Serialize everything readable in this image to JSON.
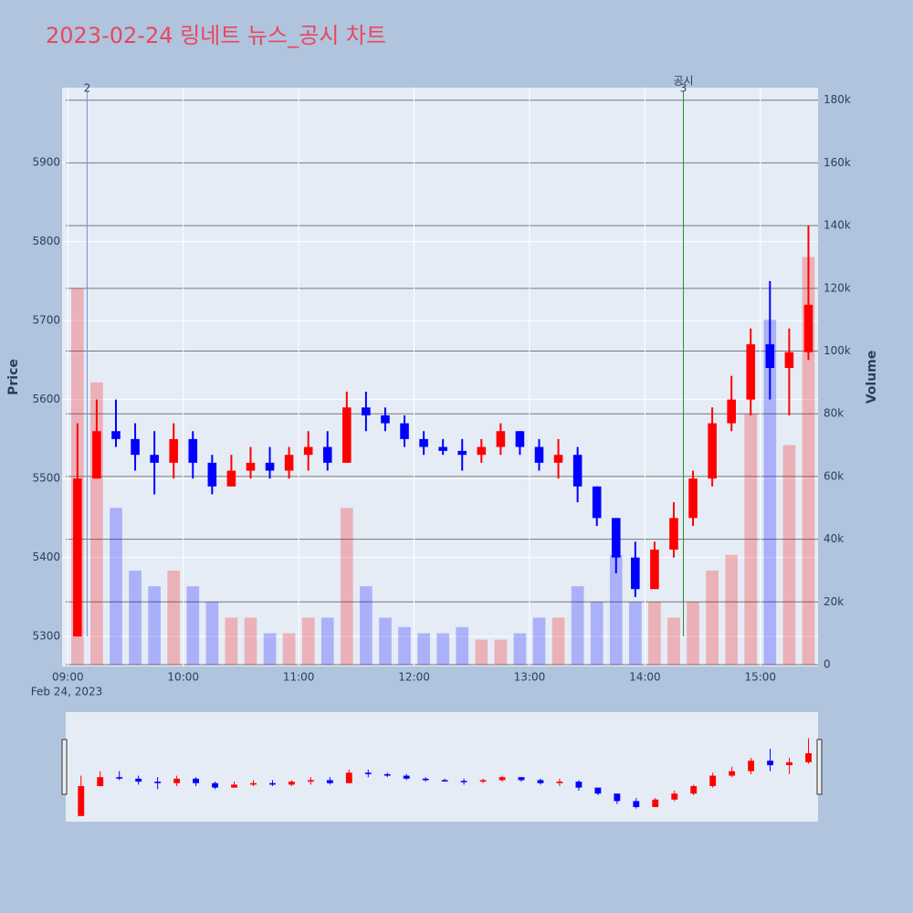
{
  "chart_data": {
    "type": "candlestick",
    "title": "2023-02-24 링네트 뉴스_공시 차트",
    "x": [
      "09:00",
      "09:10",
      "09:20",
      "09:30",
      "09:40",
      "09:50",
      "10:00",
      "10:10",
      "10:20",
      "10:30",
      "10:40",
      "10:50",
      "11:00",
      "11:10",
      "11:20",
      "11:30",
      "11:40",
      "11:50",
      "12:00",
      "12:10",
      "12:20",
      "12:30",
      "12:40",
      "12:50",
      "13:00",
      "13:10",
      "13:20",
      "13:30",
      "13:40",
      "13:50",
      "14:00",
      "14:10",
      "14:20",
      "14:30",
      "14:40",
      "14:50",
      "15:00",
      "15:10",
      "15:20"
    ],
    "open": [
      5300,
      5500,
      5560,
      5550,
      5530,
      5520,
      5550,
      5520,
      5490,
      5510,
      5520,
      5510,
      5530,
      5540,
      5520,
      5590,
      5580,
      5570,
      5550,
      5540,
      5535,
      5530,
      5540,
      5560,
      5540,
      5520,
      5530,
      5490,
      5450,
      5400,
      5360,
      5410,
      5450,
      5500,
      5570,
      5600,
      5670,
      5640,
      5660
    ],
    "high": [
      5570,
      5600,
      5600,
      5570,
      5560,
      5570,
      5560,
      5530,
      5530,
      5540,
      5540,
      5540,
      5560,
      5560,
      5610,
      5610,
      5590,
      5580,
      5560,
      5550,
      5550,
      5550,
      5570,
      5560,
      5550,
      5550,
      5540,
      5490,
      5450,
      5420,
      5420,
      5470,
      5510,
      5590,
      5630,
      5690,
      5750,
      5690,
      5820
    ],
    "low": [
      5300,
      5500,
      5540,
      5510,
      5480,
      5500,
      5500,
      5480,
      5490,
      5500,
      5500,
      5500,
      5510,
      5510,
      5520,
      5560,
      5560,
      5540,
      5530,
      5530,
      5510,
      5520,
      5530,
      5530,
      5510,
      5500,
      5470,
      5440,
      5380,
      5350,
      5360,
      5400,
      5440,
      5490,
      5560,
      5580,
      5600,
      5580,
      5650
    ],
    "close": [
      5500,
      5560,
      5550,
      5530,
      5520,
      5550,
      5520,
      5490,
      5510,
      5520,
      5510,
      5530,
      5540,
      5520,
      5590,
      5580,
      5570,
      5550,
      5540,
      5535,
      5530,
      5540,
      5560,
      5540,
      5520,
      5530,
      5490,
      5450,
      5400,
      5360,
      5410,
      5450,
      5500,
      5570,
      5600,
      5670,
      5640,
      5660,
      5720
    ],
    "volume": [
      120000,
      90000,
      50000,
      30000,
      25000,
      30000,
      25000,
      20000,
      15000,
      15000,
      10000,
      10000,
      15000,
      15000,
      50000,
      25000,
      15000,
      12000,
      10000,
      10000,
      12000,
      8000,
      8000,
      10000,
      15000,
      15000,
      25000,
      20000,
      35000,
      20000,
      20000,
      15000,
      20000,
      30000,
      35000,
      80000,
      110000,
      70000,
      130000
    ],
    "up_color": "#ff0000",
    "down_color": "#0000ff",
    "xlim": [
      "08:57",
      "15:30"
    ],
    "xticks": [
      "09:00",
      "10:00",
      "11:00",
      "12:00",
      "13:00",
      "14:00",
      "15:00"
    ],
    "x_date_label": "Feb 24, 2023",
    "ylabel": "Price",
    "y2label": "Volume",
    "ylim": [
      5262,
      5995
    ],
    "yticks": [
      5300,
      5400,
      5500,
      5600,
      5700,
      5800,
      5900
    ],
    "y2lim": [
      0,
      184000
    ],
    "y2ticks": [
      0,
      {
        "value": 20000,
        "label": "20k"
      },
      {
        "value": 40000,
        "label": "40k"
      },
      {
        "value": 60000,
        "label": "60k"
      },
      {
        "value": 80000,
        "label": "80k"
      },
      {
        "value": 100000,
        "label": "100k"
      },
      {
        "value": 120000,
        "label": "120k"
      },
      {
        "value": 140000,
        "label": "140k"
      },
      {
        "value": 160000,
        "label": "160k"
      },
      {
        "value": 180000,
        "label": "180k"
      }
    ],
    "annotations": [
      {
        "x": "09:10",
        "label": "2",
        "color": "#6f8fd8"
      },
      {
        "x": "14:20",
        "label": "3",
        "text": "공시",
        "color": "#2e8b2e"
      }
    ],
    "grid": true,
    "rangeslider": true
  }
}
